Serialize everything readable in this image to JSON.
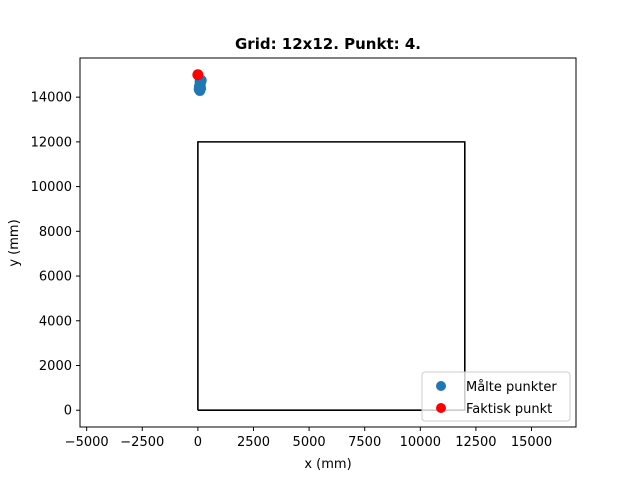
{
  "chart_data": {
    "type": "scatter",
    "title": "Grid: 12x12. Punkt: 4.",
    "xlabel": "x (mm)",
    "ylabel": "y (mm)",
    "xlim": [
      -5300,
      17000
    ],
    "ylim": [
      -750,
      15750
    ],
    "xticks": [
      -5000,
      -2500,
      0,
      2500,
      5000,
      7500,
      10000,
      12500,
      15000
    ],
    "yticks": [
      0,
      2000,
      4000,
      6000,
      8000,
      10000,
      12000,
      14000
    ],
    "grid": false,
    "legend_position": "bottom-right",
    "boundary": {
      "color": "#000000",
      "x": [
        0,
        12000,
        12000,
        0,
        0
      ],
      "y": [
        0,
        0,
        12000,
        12000,
        0
      ]
    },
    "series": [
      {
        "name": "Målte punkter",
        "color": "#1f77b4",
        "x": [
          100,
          80,
          120,
          60,
          150,
          90,
          110,
          70
        ],
        "y": [
          14700,
          14500,
          14400,
          14350,
          14750,
          14300,
          14600,
          14450
        ]
      },
      {
        "name": "Faktisk punkt",
        "color": "#ff0000",
        "x": [
          0
        ],
        "y": [
          15000
        ]
      }
    ]
  }
}
